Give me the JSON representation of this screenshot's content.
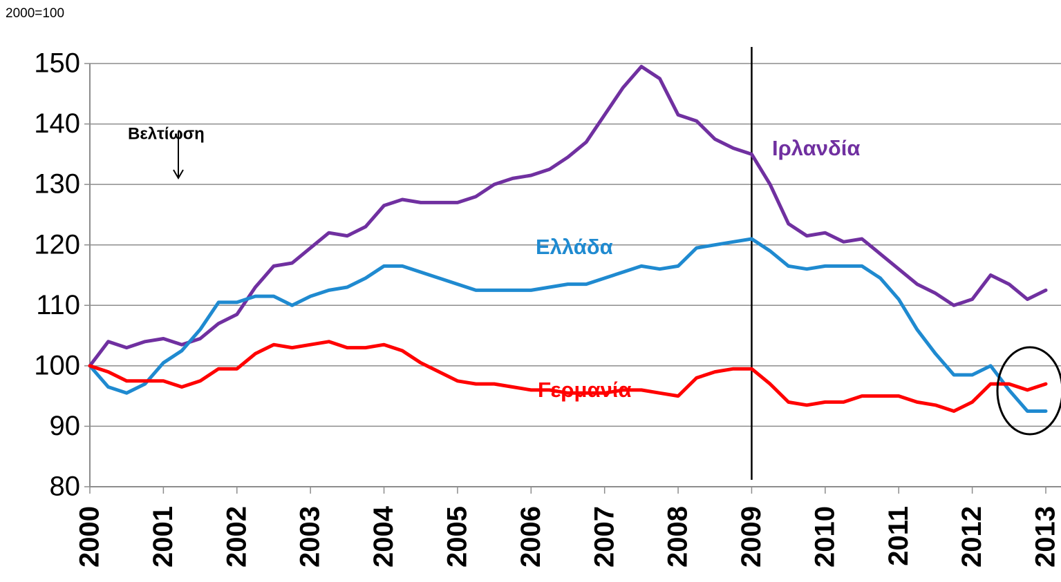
{
  "chart_data": {
    "type": "line",
    "subtitle": "2000=100",
    "annotation": "Βελτίωση",
    "x": [
      2000,
      2000.25,
      2000.5,
      2000.75,
      2001,
      2001.25,
      2001.5,
      2001.75,
      2002,
      2002.25,
      2002.5,
      2002.75,
      2003,
      2003.25,
      2003.5,
      2003.75,
      2004,
      2004.25,
      2004.5,
      2004.75,
      2005,
      2005.25,
      2005.5,
      2005.75,
      2006,
      2006.25,
      2006.5,
      2006.75,
      2007,
      2007.25,
      2007.5,
      2007.75,
      2008,
      2008.25,
      2008.5,
      2008.75,
      2009,
      2009.25,
      2009.5,
      2009.75,
      2010,
      2010.25,
      2010.5,
      2010.75,
      2011,
      2011.25,
      2011.5,
      2011.75,
      2012,
      2012.25,
      2012.5,
      2012.75,
      2013
    ],
    "series": [
      {
        "name": "Ιρλανδία",
        "color": "#7030a0",
        "values": [
          100,
          104,
          103,
          104,
          104.5,
          103.5,
          104.5,
          107,
          108.5,
          113,
          116.5,
          117,
          119.5,
          122,
          121.5,
          123,
          126.5,
          127.5,
          127,
          127,
          127,
          128,
          130,
          131,
          131.5,
          132.5,
          134.5,
          137,
          141.5,
          146,
          149.5,
          147.5,
          141.5,
          140.5,
          137.5,
          136,
          135,
          130,
          123.5,
          121.5,
          122,
          120.5,
          121,
          118.5,
          116,
          113.5,
          112,
          110,
          111,
          115,
          113.5,
          111,
          112.5
        ]
      },
      {
        "name": "Ελλάδα",
        "color": "#1f8ad0",
        "values": [
          100,
          96.5,
          95.5,
          97,
          100.5,
          102.5,
          106,
          110.5,
          110.5,
          111.5,
          111.5,
          110,
          111.5,
          112.5,
          113,
          114.5,
          116.5,
          116.5,
          115.5,
          114.5,
          113.5,
          112.5,
          112.5,
          112.5,
          112.5,
          113,
          113.5,
          113.5,
          114.5,
          115.5,
          116.5,
          116,
          116.5,
          119.5,
          120,
          120.5,
          121,
          119,
          116.5,
          116,
          116.5,
          116.5,
          116.5,
          114.5,
          111,
          106,
          102,
          98.5,
          98.5,
          100,
          96,
          92.5,
          92.5
        ]
      },
      {
        "name": "Γερμανία",
        "color": "#ff0000",
        "values": [
          100,
          99,
          97.5,
          97.5,
          97.5,
          96.5,
          97.5,
          99.5,
          99.5,
          102,
          103.5,
          103,
          103.5,
          104,
          103,
          103,
          103.5,
          102.5,
          100.5,
          99,
          97.5,
          97,
          97,
          96.5,
          96,
          96,
          95.5,
          95.5,
          95.5,
          96,
          96,
          95.5,
          95,
          98,
          99,
          99.5,
          99.5,
          97,
          94,
          93.5,
          94,
          94,
          95,
          95,
          95,
          94,
          93.5,
          92.5,
          94,
          97,
          97,
          96,
          97
        ]
      }
    ],
    "xlim": [
      2000,
      2013
    ],
    "xticks": [
      2000,
      2001,
      2002,
      2003,
      2004,
      2005,
      2006,
      2007,
      2008,
      2009,
      2010,
      2011,
      2012,
      2013
    ],
    "ylim": [
      80,
      150
    ],
    "yticks": [
      80,
      90,
      100,
      110,
      120,
      130,
      140,
      150
    ],
    "reference_line": 2009,
    "grid": true
  }
}
